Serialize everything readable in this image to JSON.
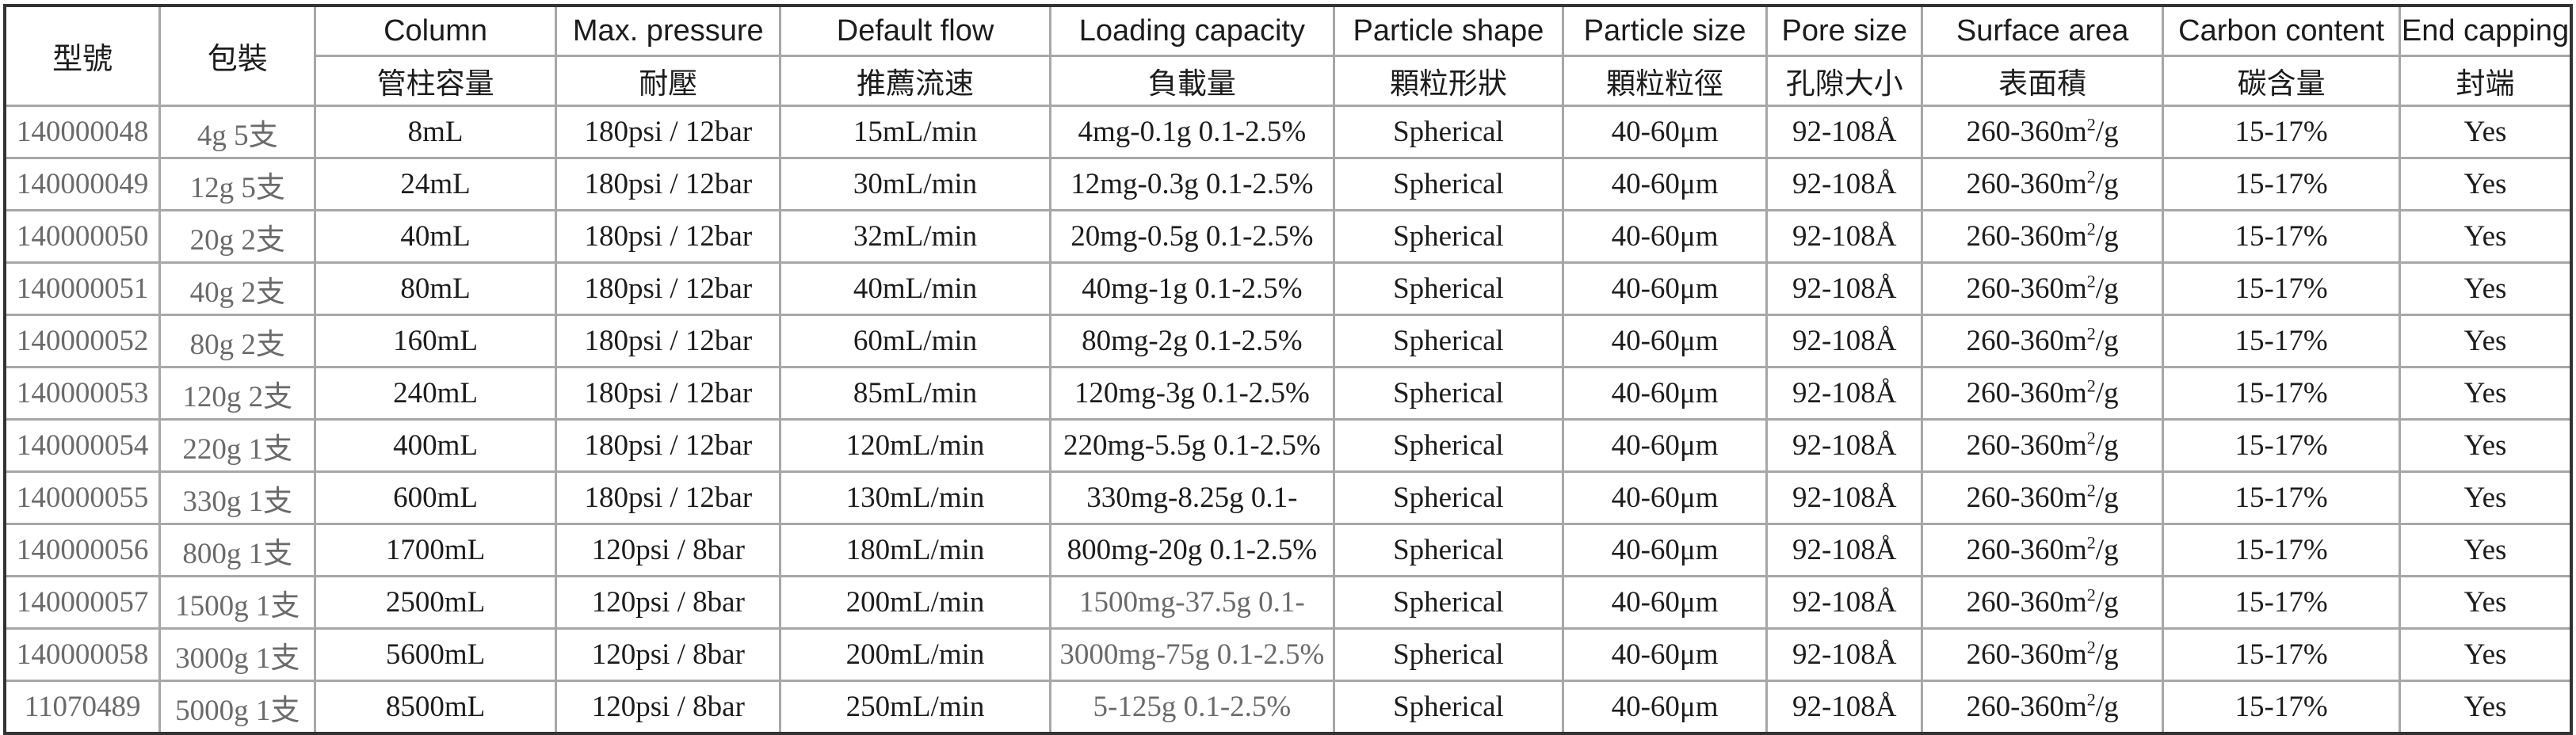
{
  "table": {
    "model_header": "型號",
    "package_header": "包裝",
    "headers_en": [
      "Column",
      "Max. pressure",
      "Default flow",
      "Loading capacity",
      "Particle shape",
      "Particle size",
      "Pore size",
      "Surface area",
      "Carbon content",
      "End capping"
    ],
    "headers_zh": [
      "管柱容量",
      "耐壓",
      "推薦流速",
      "負載量",
      "顆粒形狀",
      "顆粒粒徑",
      "孔隙大小",
      "表面積",
      "碳含量",
      "封端"
    ],
    "surface_unit_sup": "2",
    "surface_unit_suffix": "/g",
    "rows": [
      {
        "model": "140000048",
        "package": "4g 5支",
        "column": "8mL",
        "pressure": "180psi / 12bar",
        "flow": "15mL/min",
        "loading": "4mg-0.1g 0.1-2.5%",
        "shape": "Spherical",
        "particle": "40-60μm",
        "pore": "92-108Å",
        "surface": "260-360m",
        "carbon": "15-17%",
        "capping": "Yes"
      },
      {
        "model": "140000049",
        "package": "12g 5支",
        "column": "24mL",
        "pressure": "180psi / 12bar",
        "flow": "30mL/min",
        "loading": "12mg-0.3g 0.1-2.5%",
        "shape": "Spherical",
        "particle": "40-60μm",
        "pore": "92-108Å",
        "surface": "260-360m",
        "carbon": "15-17%",
        "capping": "Yes"
      },
      {
        "model": "140000050",
        "package": "20g 2支",
        "column": "40mL",
        "pressure": "180psi / 12bar",
        "flow": "32mL/min",
        "loading": "20mg-0.5g 0.1-2.5%",
        "shape": "Spherical",
        "particle": "40-60μm",
        "pore": "92-108Å",
        "surface": "260-360m",
        "carbon": "15-17%",
        "capping": "Yes"
      },
      {
        "model": "140000051",
        "package": "40g 2支",
        "column": "80mL",
        "pressure": "180psi / 12bar",
        "flow": "40mL/min",
        "loading": "40mg-1g 0.1-2.5%",
        "shape": "Spherical",
        "particle": "40-60μm",
        "pore": "92-108Å",
        "surface": "260-360m",
        "carbon": "15-17%",
        "capping": "Yes"
      },
      {
        "model": "140000052",
        "package": "80g 2支",
        "column": "160mL",
        "pressure": "180psi / 12bar",
        "flow": "60mL/min",
        "loading": "80mg-2g 0.1-2.5%",
        "shape": "Spherical",
        "particle": "40-60μm",
        "pore": "92-108Å",
        "surface": "260-360m",
        "carbon": "15-17%",
        "capping": "Yes"
      },
      {
        "model": "140000053",
        "package": "120g 2支",
        "column": "240mL",
        "pressure": "180psi / 12bar",
        "flow": "85mL/min",
        "loading": "120mg-3g 0.1-2.5%",
        "shape": "Spherical",
        "particle": "40-60μm",
        "pore": "92-108Å",
        "surface": "260-360m",
        "carbon": "15-17%",
        "capping": "Yes"
      },
      {
        "model": "140000054",
        "package": "220g 1支",
        "column": "400mL",
        "pressure": "180psi / 12bar",
        "flow": "120mL/min",
        "loading": "220mg-5.5g 0.1-2.5%",
        "shape": "Spherical",
        "particle": "40-60μm",
        "pore": "92-108Å",
        "surface": "260-360m",
        "carbon": "15-17%",
        "capping": "Yes"
      },
      {
        "model": "140000055",
        "package": "330g 1支",
        "column": "600mL",
        "pressure": "180psi / 12bar",
        "flow": "130mL/min",
        "loading": "330mg-8.25g 0.1-",
        "shape": "Spherical",
        "particle": "40-60μm",
        "pore": "92-108Å",
        "surface": "260-360m",
        "carbon": "15-17%",
        "capping": "Yes"
      },
      {
        "model": "140000056",
        "package": "800g 1支",
        "column": "1700mL",
        "pressure": "120psi / 8bar",
        "flow": "180mL/min",
        "loading": "800mg-20g 0.1-2.5%",
        "shape": "Spherical",
        "particle": "40-60μm",
        "pore": "92-108Å",
        "surface": "260-360m",
        "carbon": "15-17%",
        "capping": "Yes"
      },
      {
        "model": "140000057",
        "package": "1500g 1支",
        "column": "2500mL",
        "pressure": "120psi / 8bar",
        "flow": "200mL/min",
        "loading": "1500mg-37.5g 0.1-",
        "shape": "Spherical",
        "particle": "40-60μm",
        "pore": "92-108Å",
        "surface": "260-360m",
        "carbon": "15-17%",
        "capping": "Yes"
      },
      {
        "model": "140000058",
        "package": "3000g 1支",
        "column": "5600mL",
        "pressure": "120psi / 8bar",
        "flow": "200mL/min",
        "loading": "3000mg-75g 0.1-2.5%",
        "shape": "Spherical",
        "particle": "40-60μm",
        "pore": "92-108Å",
        "surface": "260-360m",
        "carbon": "15-17%",
        "capping": "Yes"
      },
      {
        "model": "11070489",
        "package": "5000g 1支",
        "column": "8500mL",
        "pressure": "120psi / 8bar",
        "flow": "250mL/min",
        "loading": "5-125g 0.1-2.5%",
        "shape": "Spherical",
        "particle": "40-60μm",
        "pore": "92-108Å",
        "surface": "260-360m",
        "carbon": "15-17%",
        "capping": "Yes"
      }
    ]
  },
  "colors": {
    "text": "#1c1c1c",
    "muted_text": "#6a6a6a",
    "grid_line": "#a7a7a7",
    "outer_border": "#333333"
  }
}
